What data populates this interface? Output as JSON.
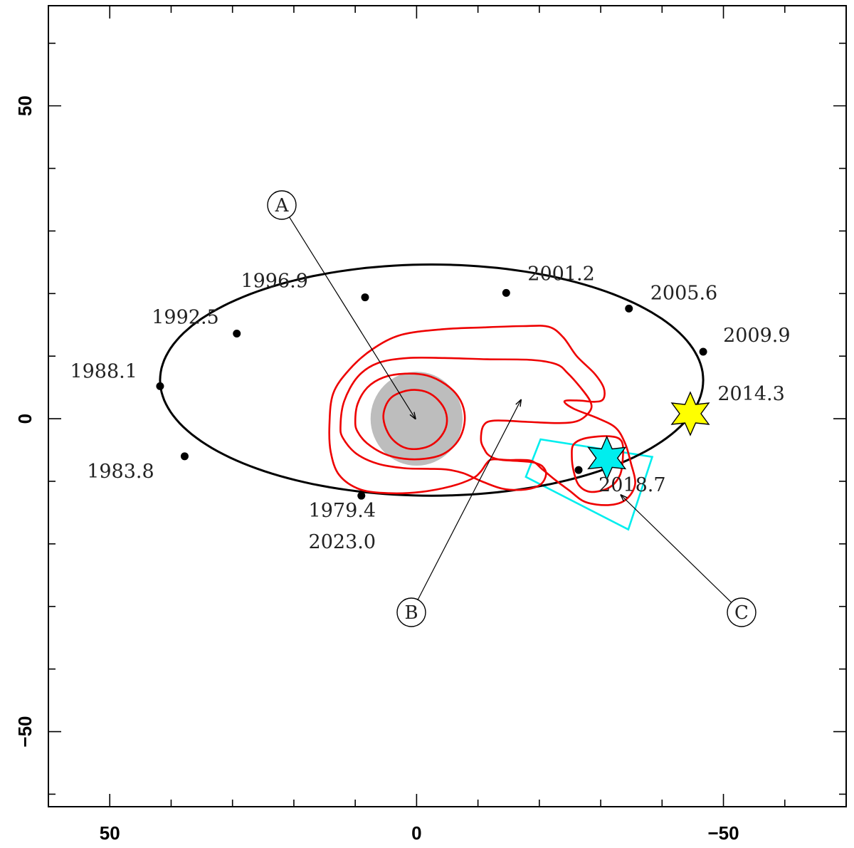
{
  "chart_data": {
    "type": "scatter",
    "xlim": [
      60,
      -70
    ],
    "ylim": [
      -62,
      66
    ],
    "xticks": [
      50,
      0,
      -50
    ],
    "yticks": [
      50,
      0,
      -50
    ],
    "xtick_labels": [
      "50",
      "0",
      "−50"
    ],
    "ytick_labels": [
      "50",
      "0",
      "−50"
    ],
    "minor_tick_step": 10,
    "grid": false,
    "orbit": {
      "color": "#000000",
      "epochs": [
        {
          "label": "1979.4",
          "label2": "2023.0",
          "x": 9.0,
          "y": -12.3
        },
        {
          "label": "1983.8",
          "x": 37.8,
          "y": -6.0
        },
        {
          "label": "1988.1",
          "x": 41.8,
          "y": 5.2
        },
        {
          "label": "1992.5",
          "x": 29.3,
          "y": 13.6
        },
        {
          "label": "1996.9",
          "x": 8.4,
          "y": 19.4
        },
        {
          "label": "2001.2",
          "x": -14.6,
          "y": 20.1
        },
        {
          "label": "2005.6",
          "x": -34.6,
          "y": 17.6
        },
        {
          "label": "2009.9",
          "x": -46.7,
          "y": 10.7
        },
        {
          "label": "2014.3",
          "x": -45.8,
          "y": 1.6
        },
        {
          "label": "2018.7",
          "x": -26.4,
          "y": -8.2
        }
      ]
    },
    "central_disk": {
      "x": 0.0,
      "y": 0.0,
      "radius": 7.5,
      "color": "#bdbdbd"
    },
    "stars": [
      {
        "name": "yellow-star",
        "x": -44.6,
        "y": 0.8,
        "color": "#ffff00"
      },
      {
        "name": "cyan-star",
        "x": -31.0,
        "y": -6.3,
        "color": "#00eeee"
      }
    ],
    "cyan_box": {
      "color": "#00eeee",
      "corners": [
        [
          -20.2,
          -3.3
        ],
        [
          -38.4,
          -6.1
        ],
        [
          -34.5,
          -17.7
        ],
        [
          -17.8,
          -9.3
        ]
      ]
    },
    "contours": {
      "color": "#ee0000",
      "levels": [
        {
          "points": [
            [
              14.2,
              -1.0
            ],
            [
              13.6,
              4.0
            ],
            [
              11.0,
              7.8
            ],
            [
              7.2,
              11.1
            ],
            [
              2.5,
              13.4
            ],
            [
              -4.2,
              14.3
            ],
            [
              -11.0,
              14.6
            ],
            [
              -17.3,
              14.8
            ],
            [
              -21.5,
              14.7
            ],
            [
              -23.9,
              13.0
            ],
            [
              -26.1,
              10.0
            ],
            [
              -29.0,
              7.2
            ],
            [
              -30.5,
              4.9
            ],
            [
              -30.4,
              3.1
            ],
            [
              -28.9,
              2.7
            ],
            [
              -26.5,
              2.9
            ],
            [
              -24.1,
              2.8
            ],
            [
              -25.6,
              1.6
            ],
            [
              -29.7,
              0.0
            ],
            [
              -32.5,
              -1.5
            ],
            [
              -34.0,
              -4.0
            ],
            [
              -34.9,
              -7.0
            ],
            [
              -35.6,
              -10.5
            ],
            [
              -34.0,
              -13.0
            ],
            [
              -31.2,
              -13.8
            ],
            [
              -27.5,
              -13.3
            ],
            [
              -24.8,
              -11.4
            ],
            [
              -22.6,
              -9.8
            ],
            [
              -20.5,
              -8.1
            ],
            [
              -18.6,
              -6.7
            ],
            [
              -15.0,
              -6.6
            ],
            [
              -12.4,
              -6.5
            ],
            [
              -11.5,
              -7.0
            ],
            [
              -10.4,
              -8.5
            ],
            [
              -9.0,
              -9.6
            ],
            [
              -5.6,
              -10.8
            ],
            [
              -0.7,
              -11.7
            ],
            [
              4.4,
              -11.9
            ],
            [
              9.2,
              -11.3
            ],
            [
              12.6,
              -9.0
            ],
            [
              14.0,
              -5.3
            ],
            [
              14.2,
              -1.0
            ]
          ]
        },
        {
          "points": [
            [
              12.4,
              -1.1
            ],
            [
              11.8,
              2.8
            ],
            [
              9.6,
              6.7
            ],
            [
              6.3,
              8.9
            ],
            [
              1.4,
              9.7
            ],
            [
              -4.5,
              9.7
            ],
            [
              -11.5,
              9.5
            ],
            [
              -18.7,
              9.4
            ],
            [
              -22.8,
              8.7
            ],
            [
              -24.6,
              7.3
            ],
            [
              -26.7,
              5.0
            ],
            [
              -28.3,
              2.8
            ],
            [
              -28.3,
              1.3
            ],
            [
              -26.4,
              -0.3
            ],
            [
              -23.3,
              -0.7
            ],
            [
              -18.0,
              -0.5
            ],
            [
              -12.7,
              -0.3
            ],
            [
              -10.9,
              -1.1
            ],
            [
              -10.5,
              -3.5
            ],
            [
              -11.1,
              -5.0
            ],
            [
              -11.6,
              -5.7
            ],
            [
              -12.6,
              -6.3
            ],
            [
              -14.0,
              -6.6
            ],
            [
              -17.2,
              -6.8
            ],
            [
              -19.1,
              -7.0
            ],
            [
              -20.5,
              -7.6
            ],
            [
              -21.1,
              -8.9
            ],
            [
              -20.2,
              -10.5
            ],
            [
              -17.8,
              -11.3
            ],
            [
              -14.1,
              -11.2
            ],
            [
              -10.6,
              -10.0
            ],
            [
              -7.6,
              -8.7
            ],
            [
              -4.8,
              -8.1
            ],
            [
              -1.8,
              -8.0
            ],
            [
              2.1,
              -7.9
            ],
            [
              6.3,
              -7.2
            ],
            [
              9.8,
              -5.6
            ],
            [
              12.0,
              -3.1
            ],
            [
              12.4,
              -1.1
            ]
          ]
        },
        {
          "points": [
            [
              10.0,
              -0.5
            ],
            [
              9.6,
              2.4
            ],
            [
              8.0,
              5.0
            ],
            [
              5.4,
              6.6
            ],
            [
              1.9,
              7.2
            ],
            [
              -1.7,
              6.9
            ],
            [
              -4.7,
              5.5
            ],
            [
              -6.8,
              3.5
            ],
            [
              -7.8,
              1.0
            ],
            [
              -7.6,
              -1.7
            ],
            [
              -6.4,
              -4.0
            ],
            [
              -4.2,
              -5.7
            ],
            [
              -1.3,
              -6.4
            ],
            [
              2.0,
              -6.4
            ],
            [
              5.3,
              -5.6
            ],
            [
              8.1,
              -3.9
            ],
            [
              9.6,
              -2.1
            ],
            [
              10.0,
              -0.5
            ]
          ]
        },
        {
          "points": [
            [
              5.4,
              0.0
            ],
            [
              5.1,
              1.9
            ],
            [
              4.1,
              3.4
            ],
            [
              2.3,
              4.3
            ],
            [
              0.3,
              4.6
            ],
            [
              -1.8,
              4.2
            ],
            [
              -3.5,
              3.0
            ],
            [
              -4.7,
              1.2
            ],
            [
              -4.9,
              -0.9
            ],
            [
              -4.0,
              -2.8
            ],
            [
              -2.4,
              -4.2
            ],
            [
              -0.4,
              -4.8
            ],
            [
              1.7,
              -4.7
            ],
            [
              3.5,
              -3.7
            ],
            [
              4.7,
              -2.2
            ],
            [
              5.4,
              0.0
            ]
          ]
        },
        {
          "points": [
            [
              -25.6,
              -4.1
            ],
            [
              -27.6,
              -3.1
            ],
            [
              -31.4,
              -2.8
            ],
            [
              -33.4,
              -3.6
            ],
            [
              -33.6,
              -6.4
            ],
            [
              -33.1,
              -9.1
            ],
            [
              -31.4,
              -11.0
            ],
            [
              -28.5,
              -11.7
            ],
            [
              -26.5,
              -10.7
            ],
            [
              -25.6,
              -8.4
            ],
            [
              -25.3,
              -6.0
            ],
            [
              -25.6,
              -4.1
            ]
          ]
        }
      ]
    },
    "callouts": [
      {
        "label": "A",
        "tip_x": 0.2,
        "tip_y": 0.0
      },
      {
        "label": "B",
        "tip_x": -17.0,
        "tip_y": 3.0
      },
      {
        "label": "C",
        "tip_x": -33.3,
        "tip_y": -12.2
      }
    ]
  }
}
